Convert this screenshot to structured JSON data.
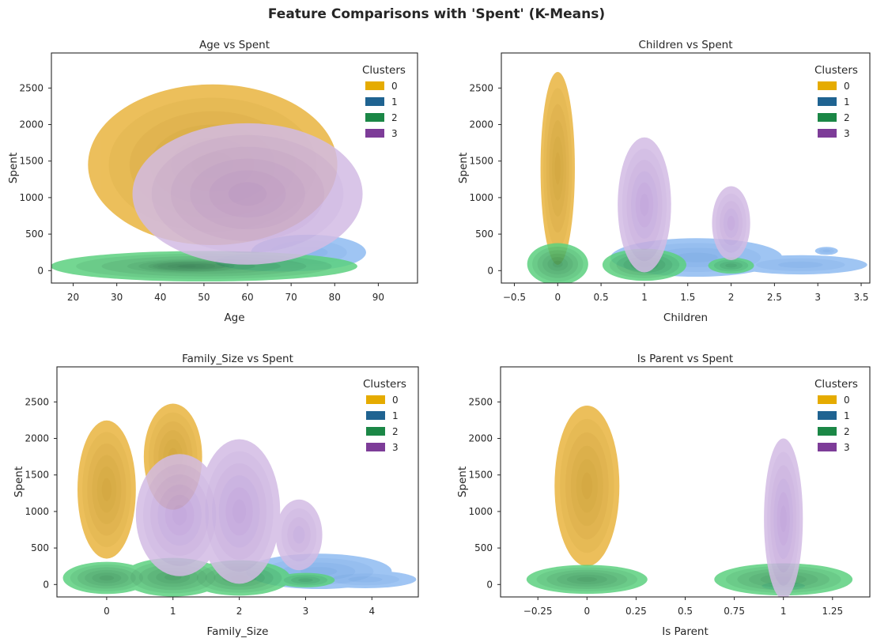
{
  "suptitle": "Feature Comparisons with 'Spent' (K-Means)",
  "colors": {
    "cluster_0_legend": "#e5ab00",
    "cluster_1_legend": "#1f6391",
    "cluster_2_legend": "#1b8746",
    "cluster_3_legend": "#7d3c98",
    "cluster_0_fill": "#e9b43f",
    "cluster_1_fill": "#8fbbf2",
    "cluster_2_fill": "#5cd17f",
    "cluster_3_fill": "#d3bce4"
  },
  "chart_data": [
    {
      "type": "kde-contour",
      "title": "Age vs Spent",
      "xlabel": "Age",
      "ylabel": "Spent",
      "xlim": [
        15,
        99
      ],
      "ylim": [
        -170,
        2980
      ],
      "xticks": [
        20,
        30,
        40,
        50,
        60,
        70,
        80,
        90
      ],
      "yticks": [
        0,
        500,
        1000,
        1500,
        2000,
        2500
      ],
      "legend": {
        "title": "Clusters",
        "placement": "top-right",
        "entries": [
          "0",
          "1",
          "2",
          "3"
        ]
      },
      "series": [
        {
          "name": "0",
          "blobs": [
            {
              "cx": 52,
              "cy": 1450,
              "sx": 13,
              "sy": 500,
              "peak": 1.0
            }
          ]
        },
        {
          "name": "1",
          "blobs": [
            {
              "cx": 74,
              "cy": 250,
              "sx": 6,
              "sy": 110,
              "peak": 0.55
            },
            {
              "cx": 68,
              "cy": 120,
              "sx": 7,
              "sy": 60,
              "peak": 0.5
            }
          ]
        },
        {
          "name": "2",
          "blobs": [
            {
              "cx": 50,
              "cy": 60,
              "sx": 16,
              "sy": 95,
              "peak": 1.0
            },
            {
              "cx": 46,
              "cy": 60,
              "sx": 6,
              "sy": 45,
              "peak": 1.0
            }
          ]
        },
        {
          "name": "3",
          "blobs": [
            {
              "cx": 60,
              "cy": 1050,
              "sx": 12,
              "sy": 440,
              "peak": 1.0
            }
          ]
        }
      ]
    },
    {
      "type": "kde-contour",
      "title": "Children vs Spent",
      "xlabel": "Children",
      "ylabel": "Spent",
      "xlim": [
        -0.65,
        3.6
      ],
      "ylim": [
        -170,
        2980
      ],
      "xticks": [
        -0.5,
        0.0,
        0.5,
        1.0,
        1.5,
        2.0,
        2.5,
        3.0,
        3.5
      ],
      "yticks": [
        0,
        500,
        1000,
        1500,
        2000,
        2500
      ],
      "legend": {
        "title": "Clusters",
        "placement": "top-right",
        "entries": [
          "0",
          "1",
          "2",
          "3"
        ]
      },
      "series": [
        {
          "name": "0",
          "blobs": [
            {
              "cx": 0.0,
              "cy": 1400,
              "sx": 0.09,
              "sy": 600,
              "peak": 1.0
            }
          ]
        },
        {
          "name": "1",
          "blobs": [
            {
              "cx": 1.6,
              "cy": 180,
              "sx": 0.45,
              "sy": 120,
              "peak": 0.7
            },
            {
              "cx": 2.8,
              "cy": 80,
              "sx": 0.35,
              "sy": 60,
              "peak": 0.45
            },
            {
              "cx": 3.1,
              "cy": 270,
              "sx": 0.06,
              "sy": 25,
              "peak": 0.5
            }
          ]
        },
        {
          "name": "2",
          "blobs": [
            {
              "cx": 0.0,
              "cy": 90,
              "sx": 0.16,
              "sy": 130,
              "peak": 1.0
            },
            {
              "cx": 1.0,
              "cy": 80,
              "sx": 0.22,
              "sy": 100,
              "peak": 1.0
            },
            {
              "cx": 2.0,
              "cy": 70,
              "sx": 0.12,
              "sy": 50,
              "peak": 0.6
            }
          ]
        },
        {
          "name": "3",
          "blobs": [
            {
              "cx": 1.0,
              "cy": 900,
              "sx": 0.14,
              "sy": 420,
              "peak": 1.0
            },
            {
              "cx": 2.0,
              "cy": 650,
              "sx": 0.1,
              "sy": 230,
              "peak": 0.85
            }
          ]
        }
      ]
    },
    {
      "type": "kde-contour",
      "title": "Family_Size vs Spent",
      "xlabel": "Family_Size",
      "ylabel": "Spent",
      "xlim": [
        -0.75,
        4.7
      ],
      "ylim": [
        -170,
        2980
      ],
      "xticks": [
        0,
        1,
        2,
        3,
        4
      ],
      "yticks": [
        0,
        500,
        1000,
        1500,
        2000,
        2500
      ],
      "legend": {
        "title": "Clusters",
        "placement": "top-right",
        "entries": [
          "0",
          "1",
          "2",
          "3"
        ]
      },
      "series": [
        {
          "name": "0",
          "blobs": [
            {
              "cx": 0.0,
              "cy": 1300,
              "sx": 0.2,
              "sy": 430,
              "peak": 1.0
            },
            {
              "cx": 1.0,
              "cy": 1750,
              "sx": 0.2,
              "sy": 330,
              "peak": 1.0
            }
          ]
        },
        {
          "name": "1",
          "blobs": [
            {
              "cx": 3.2,
              "cy": 180,
              "sx": 0.5,
              "sy": 110,
              "peak": 0.7
            },
            {
              "cx": 3.9,
              "cy": 70,
              "sx": 0.35,
              "sy": 55,
              "peak": 0.45
            }
          ]
        },
        {
          "name": "2",
          "blobs": [
            {
              "cx": 0.0,
              "cy": 90,
              "sx": 0.3,
              "sy": 100,
              "peak": 1.0
            },
            {
              "cx": 1.0,
              "cy": 100,
              "sx": 0.35,
              "sy": 120,
              "peak": 1.0
            },
            {
              "cx": 2.0,
              "cy": 90,
              "sx": 0.35,
              "sy": 110,
              "peak": 1.0
            },
            {
              "cx": 3.0,
              "cy": 60,
              "sx": 0.2,
              "sy": 45,
              "peak": 0.7
            }
          ]
        },
        {
          "name": "3",
          "blobs": [
            {
              "cx": 1.1,
              "cy": 950,
              "sx": 0.3,
              "sy": 380,
              "peak": 1.0
            },
            {
              "cx": 2.0,
              "cy": 1000,
              "sx": 0.28,
              "sy": 450,
              "peak": 1.0
            },
            {
              "cx": 2.9,
              "cy": 680,
              "sx": 0.16,
              "sy": 220,
              "peak": 0.7
            }
          ]
        }
      ]
    },
    {
      "type": "kde-contour",
      "title": "Is Parent vs Spent",
      "xlabel": "Is Parent",
      "ylabel": "Spent",
      "xlim": [
        -0.44,
        1.44
      ],
      "ylim": [
        -170,
        2980
      ],
      "xticks": [
        -0.25,
        0.0,
        0.25,
        0.5,
        0.75,
        1.0,
        1.25
      ],
      "yticks": [
        0,
        500,
        1000,
        1500,
        2000,
        2500
      ],
      "legend": {
        "title": "Clusters",
        "placement": "top-right",
        "entries": [
          "0",
          "1",
          "2",
          "3"
        ]
      },
      "series": [
        {
          "name": "0",
          "blobs": [
            {
              "cx": 0.0,
              "cy": 1350,
              "sx": 0.075,
              "sy": 500,
              "peak": 1.0
            }
          ]
        },
        {
          "name": "1",
          "blobs": [
            {
              "cx": 1.0,
              "cy": -20,
              "sx": 0.05,
              "sy": 25,
              "peak": 0.5
            }
          ]
        },
        {
          "name": "2",
          "blobs": [
            {
              "cx": 0.0,
              "cy": 70,
              "sx": 0.14,
              "sy": 90,
              "peak": 1.0
            },
            {
              "cx": 1.0,
              "cy": 70,
              "sx": 0.16,
              "sy": 100,
              "peak": 1.0
            }
          ]
        },
        {
          "name": "3",
          "blobs": [
            {
              "cx": 1.0,
              "cy": 900,
              "sx": 0.045,
              "sy": 500,
              "peak": 1.0
            }
          ]
        }
      ]
    }
  ]
}
